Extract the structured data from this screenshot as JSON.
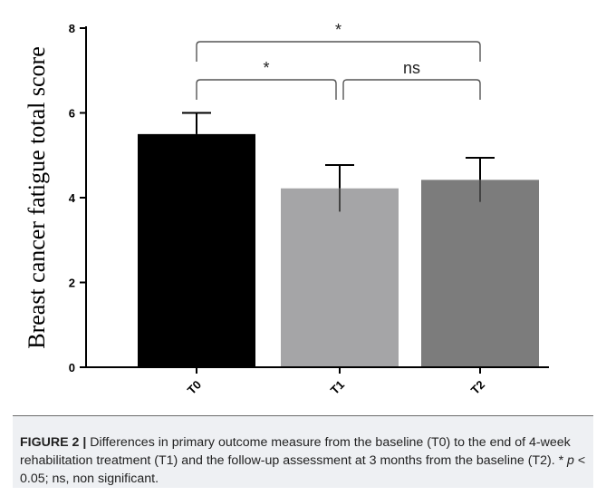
{
  "chart_data": {
    "type": "bar",
    "categories": [
      "T0",
      "T1",
      "T2"
    ],
    "values": [
      5.5,
      4.22,
      4.42
    ],
    "errors": [
      0.5,
      0.55,
      0.52
    ],
    "bar_colors": [
      "#000000",
      "#a5a5a7",
      "#7c7c7c"
    ],
    "title": "",
    "xlabel": "",
    "ylabel": "Breast cancer fatigue total score",
    "ylim": [
      0,
      8
    ],
    "yticks": [
      0,
      2,
      4,
      6,
      8
    ],
    "comparisons": [
      {
        "from": "T0",
        "to": "T2",
        "label": "*"
      },
      {
        "from": "T0",
        "to": "T1",
        "label": "*"
      },
      {
        "from": "T1",
        "to": "T2",
        "label": "ns"
      }
    ]
  },
  "caption": {
    "label": "FIGURE 2 |",
    "text1": " Differences in primary outcome measure from the baseline (T0) to the end of 4-week rehabilitation treatment (T1) and the follow-up assessment at 3 months from the baseline (T2). * ",
    "p_symbol": "p",
    "text2": " < 0.05; ns, non significant."
  }
}
